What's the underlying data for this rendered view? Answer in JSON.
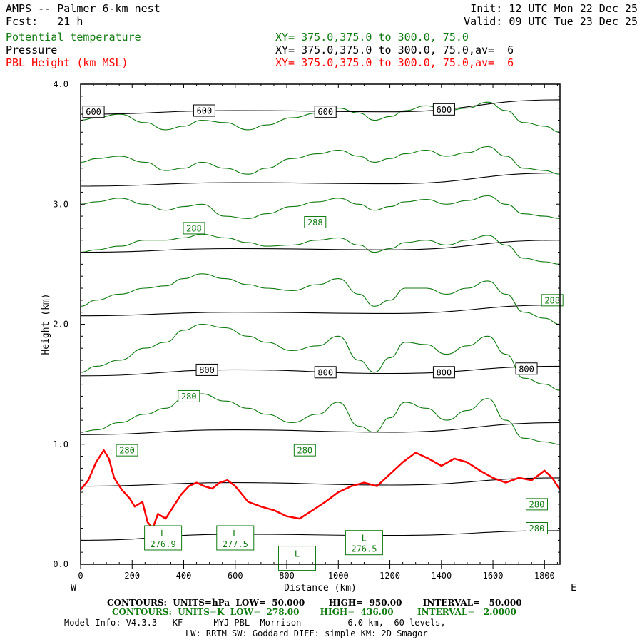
{
  "header": {
    "line1_left": "AMPS -- Palmer 6-km nest",
    "line1_right": "Init: 12 UTC Mon 22 Dec 25",
    "line2_left": "Fcst:   21 h",
    "line2_right": "Valid: 09 UTC Tue 23 Dec 25",
    "fields": [
      {
        "name": "Potential temperature",
        "xy": "XY= 375.0,375.0 to 300.0, 75.0",
        "color": "#107a10"
      },
      {
        "name": "Pressure",
        "xy": "XY= 375.0,375.0 to 300.0, 75.0,av=  6",
        "color": "#000000"
      },
      {
        "name": "PBL Height (km MSL)",
        "xy": "XY= 375.0,375.0 to 300.0, 75.0,av=  6",
        "color": "#ff0000"
      }
    ]
  },
  "chart_data": {
    "type": "line",
    "xlabel": "Distance (km)",
    "ylabel": "Height (km)",
    "xlim": [
      0,
      1860
    ],
    "ylim": [
      0,
      4.0
    ],
    "x_ticks": [
      0,
      200,
      400,
      600,
      800,
      1000,
      1200,
      1400,
      1600,
      1800
    ],
    "y_ticks": [
      0.0,
      1.0,
      2.0,
      3.0,
      4.0
    ],
    "y_tick_labels": [
      "0.0",
      "1.0",
      "2.0",
      "3.0",
      "4.0"
    ],
    "left_end_label": "W",
    "right_end_label": "E",
    "pressure_contours": [
      {
        "x": [
          0,
          600,
          1200,
          1860
        ],
        "y": [
          0.2,
          0.25,
          0.24,
          0.28
        ]
      },
      {
        "x": [
          0,
          600,
          1200,
          1860
        ],
        "y": [
          0.65,
          0.68,
          0.66,
          0.72
        ]
      },
      {
        "x": [
          0,
          600,
          1200,
          1860
        ],
        "y": [
          1.08,
          1.12,
          1.1,
          1.18
        ]
      },
      {
        "x": [
          0,
          600,
          1200,
          1860
        ],
        "y": [
          1.57,
          1.62,
          1.59,
          1.65
        ]
      },
      {
        "x": [
          0,
          600,
          1200,
          1860
        ],
        "y": [
          2.07,
          2.1,
          2.09,
          2.16
        ]
      },
      {
        "x": [
          0,
          600,
          1200,
          1860
        ],
        "y": [
          2.6,
          2.63,
          2.62,
          2.7
        ]
      },
      {
        "x": [
          0,
          600,
          1200,
          1860
        ],
        "y": [
          3.15,
          3.18,
          3.17,
          3.26
        ]
      },
      {
        "x": [
          0,
          600,
          1200,
          1860
        ],
        "y": [
          3.75,
          3.78,
          3.77,
          3.87
        ]
      }
    ],
    "pressure_labels": [
      {
        "text": "600",
        "x": 50,
        "y": 3.77
      },
      {
        "text": "600",
        "x": 480,
        "y": 3.78
      },
      {
        "text": "600",
        "x": 950,
        "y": 3.77
      },
      {
        "text": "600",
        "x": 1410,
        "y": 3.79
      },
      {
        "text": "800",
        "x": 490,
        "y": 1.62
      },
      {
        "text": "800",
        "x": 950,
        "y": 1.6
      },
      {
        "text": "800",
        "x": 1410,
        "y": 1.6
      },
      {
        "text": "800",
        "x": 1730,
        "y": 1.63
      }
    ],
    "theta_contours": [
      {
        "x": [
          0,
          60,
          150,
          250,
          330,
          400,
          470,
          560,
          650,
          720,
          820,
          920,
          1000,
          1080,
          1140,
          1200,
          1260,
          1340,
          1420,
          1500,
          1580,
          1650,
          1720,
          1800,
          1860
        ],
        "y": [
          1.1,
          1.12,
          1.18,
          1.25,
          1.3,
          1.38,
          1.42,
          1.36,
          1.3,
          1.25,
          1.18,
          1.25,
          1.35,
          1.15,
          1.1,
          1.22,
          1.35,
          1.3,
          1.2,
          1.28,
          1.38,
          1.2,
          1.05,
          1.02,
          1.0
        ]
      },
      {
        "x": [
          0,
          60,
          150,
          250,
          330,
          400,
          470,
          560,
          650,
          720,
          820,
          920,
          1000,
          1080,
          1140,
          1200,
          1260,
          1340,
          1420,
          1500,
          1580,
          1650,
          1720,
          1800,
          1860
        ],
        "y": [
          1.6,
          1.65,
          1.7,
          1.8,
          1.85,
          1.95,
          2.0,
          1.97,
          1.9,
          1.85,
          1.78,
          1.82,
          1.9,
          1.7,
          1.6,
          1.72,
          1.85,
          1.83,
          1.75,
          1.82,
          1.9,
          1.75,
          1.55,
          1.5,
          1.45
        ]
      },
      {
        "x": [
          0,
          60,
          150,
          250,
          330,
          400,
          470,
          560,
          650,
          720,
          820,
          920,
          1000,
          1080,
          1140,
          1200,
          1260,
          1340,
          1420,
          1500,
          1580,
          1650,
          1720,
          1800,
          1860
        ],
        "y": [
          2.15,
          2.2,
          2.25,
          2.3,
          2.32,
          2.38,
          2.42,
          2.38,
          2.33,
          2.3,
          2.28,
          2.33,
          2.38,
          2.25,
          2.15,
          2.2,
          2.3,
          2.3,
          2.25,
          2.3,
          2.36,
          2.25,
          2.1,
          2.05,
          2.0
        ]
      },
      {
        "x": [
          0,
          60,
          150,
          250,
          330,
          400,
          470,
          560,
          650,
          720,
          820,
          920,
          1000,
          1080,
          1140,
          1200,
          1260,
          1340,
          1420,
          1500,
          1580,
          1650,
          1720,
          1800,
          1860
        ],
        "y": [
          2.6,
          2.62,
          2.65,
          2.7,
          2.7,
          2.72,
          2.75,
          2.72,
          2.68,
          2.65,
          2.66,
          2.7,
          2.72,
          2.66,
          2.6,
          2.63,
          2.68,
          2.7,
          2.66,
          2.7,
          2.74,
          2.66,
          2.55,
          2.52,
          2.5
        ]
      },
      {
        "x": [
          0,
          60,
          150,
          250,
          330,
          400,
          470,
          560,
          650,
          720,
          820,
          920,
          1000,
          1080,
          1140,
          1200,
          1260,
          1340,
          1420,
          1500,
          1580,
          1650,
          1720,
          1800,
          1860
        ],
        "y": [
          3.0,
          3.02,
          3.05,
          3.0,
          2.95,
          2.98,
          3.0,
          2.9,
          2.88,
          2.92,
          2.98,
          3.02,
          3.05,
          3.0,
          2.95,
          2.98,
          3.02,
          3.04,
          3.0,
          3.03,
          3.07,
          3.0,
          2.92,
          2.9,
          2.88
        ]
      },
      {
        "x": [
          0,
          60,
          150,
          250,
          330,
          400,
          470,
          560,
          650,
          720,
          820,
          920,
          1000,
          1080,
          1140,
          1200,
          1260,
          1340,
          1420,
          1500,
          1580,
          1650,
          1720,
          1800,
          1860
        ],
        "y": [
          3.35,
          3.38,
          3.4,
          3.35,
          3.28,
          3.3,
          3.35,
          3.3,
          3.25,
          3.3,
          3.38,
          3.42,
          3.45,
          3.4,
          3.35,
          3.38,
          3.42,
          3.45,
          3.4,
          3.43,
          3.48,
          3.4,
          3.3,
          3.28,
          3.25
        ]
      },
      {
        "x": [
          0,
          60,
          150,
          250,
          330,
          400,
          470,
          560,
          650,
          720,
          820,
          920,
          1000,
          1080,
          1140,
          1200,
          1260,
          1340,
          1420,
          1500,
          1580,
          1650,
          1720,
          1800,
          1860
        ],
        "y": [
          3.7,
          3.72,
          3.75,
          3.68,
          3.62,
          3.65,
          3.7,
          3.68,
          3.62,
          3.66,
          3.72,
          3.76,
          3.8,
          3.76,
          3.7,
          3.73,
          3.78,
          3.82,
          3.78,
          3.8,
          3.85,
          3.78,
          3.68,
          3.65,
          3.6
        ]
      }
    ],
    "theta_labels": [
      {
        "text": "288",
        "x": 440,
        "y": 2.8
      },
      {
        "text": "288",
        "x": 910,
        "y": 2.85
      },
      {
        "text": "288",
        "x": 1830,
        "y": 2.2
      },
      {
        "text": "280",
        "x": 420,
        "y": 1.4
      },
      {
        "text": "280",
        "x": 180,
        "y": 0.95
      },
      {
        "text": "280",
        "x": 870,
        "y": 0.95
      },
      {
        "text": "280",
        "x": 1770,
        "y": 0.5
      },
      {
        "text": "280",
        "x": 1770,
        "y": 0.3
      }
    ],
    "lows": [
      {
        "text": "276.9",
        "x": 320,
        "y": 0.22
      },
      {
        "text": "277.5",
        "x": 600,
        "y": 0.22
      },
      {
        "text": "276.5",
        "x": 1100,
        "y": 0.18
      },
      {
        "text": "",
        "x": 840,
        "y": 0.05
      }
    ],
    "low_marker": "L",
    "pbl_height": {
      "x": [
        0,
        30,
        60,
        90,
        110,
        130,
        160,
        190,
        210,
        240,
        260,
        280,
        300,
        330,
        360,
        390,
        420,
        450,
        480,
        510,
        540,
        570,
        600,
        650,
        700,
        750,
        800,
        850,
        900,
        950,
        1000,
        1050,
        1100,
        1150,
        1200,
        1250,
        1300,
        1350,
        1400,
        1450,
        1500,
        1550,
        1600,
        1650,
        1700,
        1750,
        1800,
        1830,
        1860
      ],
      "y": [
        0.62,
        0.7,
        0.85,
        0.95,
        0.88,
        0.72,
        0.62,
        0.55,
        0.48,
        0.52,
        0.35,
        0.3,
        0.42,
        0.38,
        0.48,
        0.58,
        0.65,
        0.68,
        0.65,
        0.63,
        0.68,
        0.7,
        0.65,
        0.52,
        0.48,
        0.45,
        0.4,
        0.38,
        0.45,
        0.52,
        0.6,
        0.65,
        0.68,
        0.65,
        0.75,
        0.85,
        0.93,
        0.88,
        0.82,
        0.88,
        0.85,
        0.78,
        0.72,
        0.68,
        0.72,
        0.7,
        0.78,
        0.72,
        0.62
      ]
    },
    "pbl_color": "#ff0000",
    "theta_color": "#107a10",
    "pressure_color": "#000000",
    "grid": false
  },
  "footer": {
    "contours_pressure": "CONTOURS:  UNITS=hPa  LOW=  50.000        HIGH=  950.00       INTERVAL=   50.000",
    "contours_theta": "CONTOURS:  UNITS=K  LOW=  278.00       HIGH=  436.00        INTERVAL=   2.0000",
    "model_info": "Model Info: V4.3.3   KF      MYJ PBL  Morrison         6.0 km,  60 levels,",
    "model_info2": "LW: RRTM SW: Goddard DIFF: simple KM: 2D Smagor"
  }
}
